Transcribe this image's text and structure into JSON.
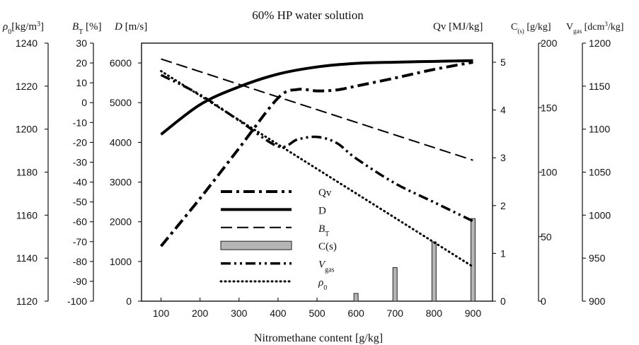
{
  "chart_data": {
    "type": "line",
    "title": "60% HP water solution",
    "xlabel": "Nitromethane content [g/kg]",
    "x_ticks": [
      "100",
      "200",
      "300",
      "400",
      "500",
      "600",
      "700",
      "800",
      "900"
    ],
    "xlim": [
      50,
      950
    ],
    "axes": {
      "rho0": {
        "label_main": "ρ",
        "label_sub": "0",
        "label_rest": "[kg/m",
        "label_sup": "3",
        "label_end": "]",
        "range": [
          1120,
          1240
        ],
        "ticks": [
          "1120",
          "1140",
          "1160",
          "1180",
          "1200",
          "1220",
          "1240"
        ]
      },
      "BT": {
        "label_main": "B",
        "label_sub": "T",
        "label_rest": " [%]",
        "range": [
          -100,
          30
        ],
        "ticks": [
          "-100",
          "-90",
          "-80",
          "-70",
          "-60",
          "-50",
          "-40",
          "-30",
          "-20",
          "-10",
          "0",
          "10",
          "20",
          "30"
        ]
      },
      "D": {
        "label_main": "D",
        "label_rest": " [m/s]",
        "range": [
          0,
          6500
        ],
        "ticks": [
          "0",
          "1000",
          "2000",
          "3000",
          "4000",
          "5000",
          "6000"
        ]
      },
      "Qv": {
        "label": "Qv [MJ/kg]",
        "range": [
          0,
          5.4
        ],
        "ticks": [
          "0",
          "1",
          "2",
          "3",
          "4",
          "5"
        ]
      },
      "Cs": {
        "label_main": "C",
        "label_sub": "(s)",
        "label_rest": " [g/kg]",
        "range": [
          0,
          200
        ],
        "ticks": [
          "0",
          "50",
          "100",
          "150",
          "200"
        ]
      },
      "Vgas": {
        "label_main": "V",
        "label_sub": "gas",
        "label_rest": " [dcm",
        "label_sup": "3",
        "label_end": "/kg]",
        "range": [
          900,
          1200
        ],
        "ticks": [
          "900",
          "950",
          "1000",
          "1050",
          "1100",
          "1150",
          "1200"
        ]
      }
    },
    "series": [
      {
        "name": "Qv",
        "axis": "Qv",
        "style": "dashdot",
        "x": [
          100,
          200,
          300,
          400,
          450,
          500,
          550,
          600,
          700,
          800,
          900
        ],
        "values": [
          1.15,
          2.15,
          3.2,
          4.25,
          4.43,
          4.4,
          4.42,
          4.5,
          4.67,
          4.85,
          5.0
        ]
      },
      {
        "name": "D",
        "axis": "D",
        "style": "solid",
        "x": [
          100,
          200,
          300,
          400,
          500,
          600,
          700,
          800,
          900
        ],
        "values": [
          4200,
          4950,
          5400,
          5720,
          5900,
          5990,
          6020,
          6040,
          6060
        ]
      },
      {
        "name": "BT",
        "axis": "BT",
        "style": "dashed",
        "x": [
          100,
          900
        ],
        "values": [
          22,
          -29
        ]
      },
      {
        "name": "C(s)",
        "axis": "Cs",
        "style": "bar",
        "x": [
          600,
          700,
          800,
          900
        ],
        "values": [
          6,
          26,
          46,
          64
        ]
      },
      {
        "name": "Vgas",
        "axis": "Vgas",
        "style": "dashdotdot",
        "x": [
          100,
          200,
          300,
          400,
          450,
          500,
          550,
          600,
          700,
          800,
          900
        ],
        "values": [
          1163,
          1140,
          1110,
          1080,
          1088,
          1091,
          1084,
          1066,
          1037,
          1015,
          993
        ]
      },
      {
        "name": "ρ0",
        "axis": "rho0",
        "style": "dotted",
        "x": [
          100,
          900
        ],
        "values": [
          1227,
          1136
        ]
      }
    ],
    "legend": {
      "placement": "lower-center",
      "entries": [
        {
          "series": "Qv",
          "text": "Qv"
        },
        {
          "series": "D",
          "text": "D"
        },
        {
          "series": "BT",
          "text_main": "B",
          "text_sub": "T"
        },
        {
          "series": "C(s)",
          "text": "C(s)"
        },
        {
          "series": "Vgas",
          "text_main": "V",
          "text_sub": "gas"
        },
        {
          "series": "ρ0",
          "text_main": "ρ",
          "text_sub": "0"
        }
      ]
    },
    "grid": false
  }
}
